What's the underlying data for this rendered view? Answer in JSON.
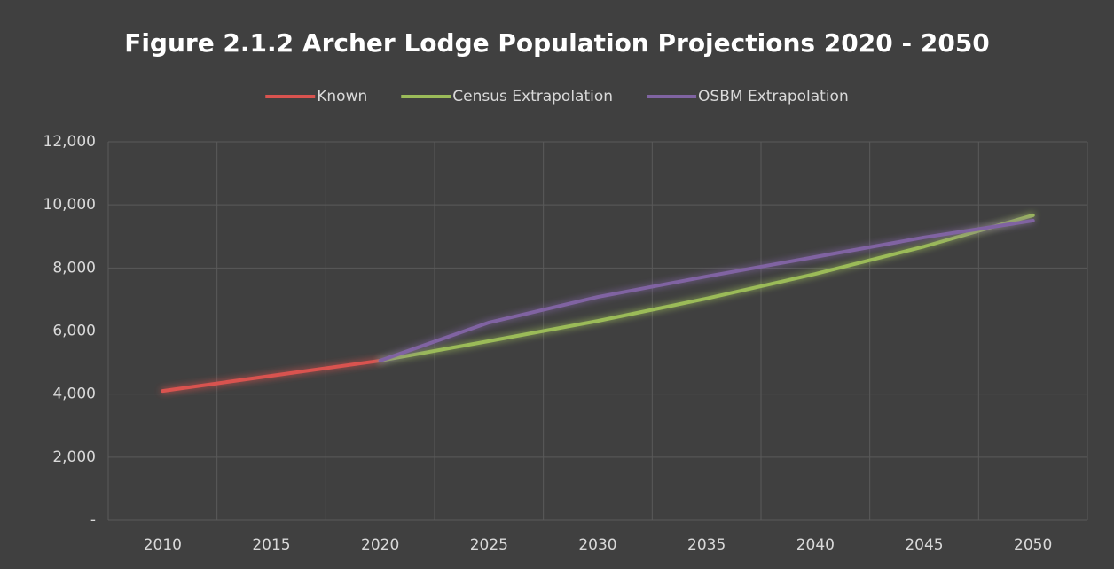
{
  "chart_data": {
    "type": "line",
    "title": "Figure 2.1.2 Archer Lodge Population Projections  2020 - 2050",
    "categories": [
      "2010",
      "2015",
      "2020",
      "2025",
      "2030",
      "2035",
      "2040",
      "2045",
      "2050"
    ],
    "series": [
      {
        "name": "Known",
        "color": "#d9534f",
        "values": [
          4100,
          4580,
          5060,
          null,
          null,
          null,
          null,
          null,
          null
        ]
      },
      {
        "name": "Census Extrapolation",
        "color": "#9bbb59",
        "values": [
          null,
          null,
          5060,
          5680,
          6320,
          7030,
          7810,
          8680,
          9670
        ]
      },
      {
        "name": "OSBM Extrapolation",
        "color": "#8064a2",
        "values": [
          null,
          null,
          5060,
          6270,
          7080,
          7730,
          8350,
          8970,
          9500
        ]
      }
    ],
    "ylim": [
      0,
      12000
    ],
    "yticks": [
      {
        "value": 0,
        "label": "-"
      },
      {
        "value": 2000,
        "label": "2,000"
      },
      {
        "value": 4000,
        "label": "4,000"
      },
      {
        "value": 6000,
        "label": "6,000"
      },
      {
        "value": 8000,
        "label": "8,000"
      },
      {
        "value": 10000,
        "label": "10,000"
      },
      {
        "value": 12000,
        "label": "12,000"
      }
    ],
    "grid": true,
    "legend": "top"
  }
}
